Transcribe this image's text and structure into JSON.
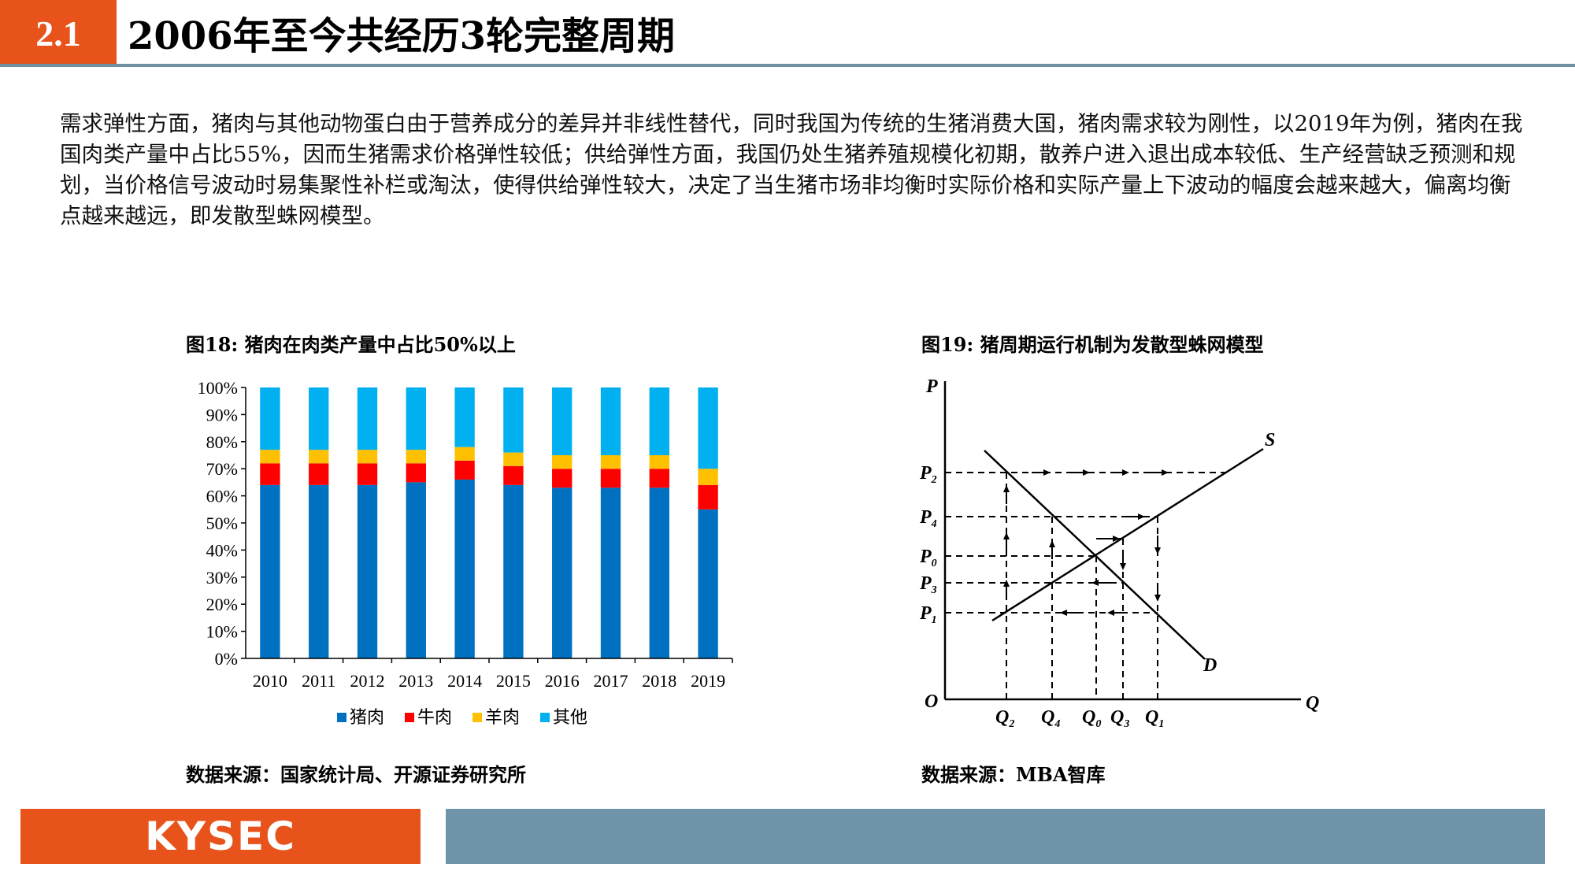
{
  "header": {
    "section_number": "2.1",
    "title": "2006年至今共经历3轮完整周期",
    "accent_color": "#e8531c",
    "rule_color": "#6f8fa5"
  },
  "body": {
    "paragraph": "需求弹性方面，猪肉与其他动物蛋白由于营养成分的差异并非线性替代，同时我国为传统的生猪消费大国，猪肉需求较为刚性，以2019年为例，猪肉在我国肉类产量中占比55%，因而生猪需求价格弹性较低；供给弹性方面，我国仍处生猪养殖规模化初期，散养户进入退出成本较低、生产经营缺乏预测和规划，当价格信号波动时易集聚性补栏或淘汰，使得供给弹性较大，决定了当生猪市场非均衡时实际价格和实际产量上下波动的幅度会越来越大，偏离均衡点越来越远，即发散型蛛网模型。"
  },
  "figure18": {
    "caption": "图18:  猪肉在肉类产量中占比50%以上",
    "source": "数据来源：国家统计局、开源证券研究所"
  },
  "figure19": {
    "caption": "图19:  猪周期运行机制为发散型蛛网模型",
    "source": "数据来源：MBA智库",
    "labels": {
      "P": "P",
      "Q": "Q",
      "O": "O",
      "S": "S",
      "D": "D",
      "P2": "P",
      "P2_sub": "2",
      "P4": "P",
      "P4_sub": "4",
      "P0": "P",
      "P0_sub": "0",
      "P3": "P",
      "P3_sub": "3",
      "P1": "P",
      "P1_sub": "1",
      "Q2": "Q",
      "Q2_sub": "2",
      "Q4": "Q",
      "Q4_sub": "4",
      "Q0": "Q",
      "Q0_sub": "0",
      "Q3": "Q",
      "Q3_sub": "3",
      "Q1": "Q",
      "Q1_sub": "1"
    }
  },
  "footer": {
    "logo": "KYSEC",
    "logo_color": "#e8531c",
    "bar_color": "#6f93a8"
  },
  "chart_data": {
    "type": "bar",
    "stacked": true,
    "categories": [
      "2010",
      "2011",
      "2012",
      "2013",
      "2014",
      "2015",
      "2016",
      "2017",
      "2018",
      "2019"
    ],
    "series": [
      {
        "name": "猪肉",
        "color": "#0070c0",
        "values": [
          64,
          64,
          64,
          65,
          66,
          64,
          63,
          63,
          63,
          55
        ]
      },
      {
        "name": "牛肉",
        "color": "#ff0000",
        "values": [
          8,
          8,
          8,
          7,
          7,
          7,
          7,
          7,
          7,
          9
        ]
      },
      {
        "name": "羊肉",
        "color": "#ffc000",
        "values": [
          5,
          5,
          5,
          5,
          5,
          5,
          5,
          5,
          5,
          6
        ]
      },
      {
        "name": "其他",
        "color": "#00b0f0",
        "values": [
          23,
          23,
          23,
          23,
          22,
          24,
          25,
          25,
          25,
          30
        ]
      }
    ],
    "yticks": [
      "0%",
      "10%",
      "20%",
      "30%",
      "40%",
      "50%",
      "60%",
      "70%",
      "80%",
      "90%",
      "100%"
    ],
    "ylim": [
      0,
      100
    ],
    "legend_position": "bottom"
  }
}
